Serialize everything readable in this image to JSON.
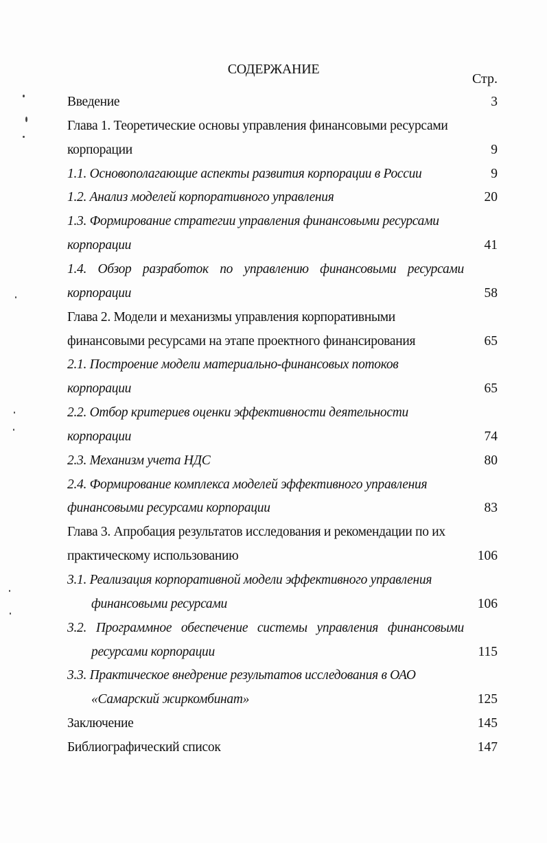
{
  "document": {
    "title": "СОДЕРЖАНИЕ",
    "page_column_header": "Стр.",
    "lines": [
      {
        "text": "Введение",
        "style": "normal",
        "page": "3"
      },
      {
        "text": "Глава 1.  Теоретические основы управления финансовыми ресурсами",
        "style": "normal"
      },
      {
        "text": "корпорации",
        "style": "normal",
        "page": "9"
      },
      {
        "text": "1.1. Основополагающие аспекты развития  корпорации в России",
        "style": "italic",
        "page": "9"
      },
      {
        "text": "1.2. Анализ моделей корпоративного управления",
        "style": "italic",
        "page": "20"
      },
      {
        "text": "1.3. Формирование стратегии управления финансовыми ресурсами",
        "style": "italic"
      },
      {
        "text": "корпорации",
        "style": "italic",
        "page": "41"
      },
      {
        "text": "1.4. Обзор разработок по управлению финансовыми ресурсами",
        "style": "italic",
        "justify": true
      },
      {
        "text": "корпорации",
        "style": "italic",
        "page": "58"
      },
      {
        "text": "Глава 2. Модели и механизмы управления корпоративными",
        "style": "normal"
      },
      {
        "text": "финансовыми ресурсами на этапе проектного финансирования",
        "style": "normal",
        "page": "65"
      },
      {
        "text": "2.1. Построение модели материально-финансовых потоков",
        "style": "italic"
      },
      {
        "text": "корпорации",
        "style": "italic",
        "page": "65"
      },
      {
        "text": "2.2. Отбор критериев оценки эффективности деятельности",
        "style": "italic"
      },
      {
        "text": "корпорации",
        "style": "italic",
        "page": "74"
      },
      {
        "text": "2.3. Механизм учета НДС",
        "style": "italic",
        "page": "80"
      },
      {
        "text": "2.4. Формирование комплекса моделей эффективного управления",
        "style": "italic"
      },
      {
        "text": "финансовыми ресурсами корпорации",
        "style": "italic",
        "page": "83"
      },
      {
        "text": "Глава 3. Апробация результатов исследования и рекомендации по их",
        "style": "normal"
      },
      {
        "text": "практическому использованию",
        "style": "normal",
        "page": "106"
      },
      {
        "text": "3.1.  Реализация корпоративной модели эффективного управления",
        "style": "italic"
      },
      {
        "text": "финансовыми ресурсами",
        "style": "italic",
        "indent": true,
        "page": "106"
      },
      {
        "text": "3.2. Программное обеспечение системы управления финансовыми",
        "style": "italic",
        "justify": true
      },
      {
        "text": "ресурсами корпорации",
        "style": "italic",
        "indent": true,
        "page": "115"
      },
      {
        "text": "3.3.  Практическое внедрение результатов исследования в ОАО",
        "style": "italic"
      },
      {
        "text": "«Самарский жиркомбинат»",
        "style": "italic",
        "indent": true,
        "page": "125"
      },
      {
        "text": "Заключение",
        "style": "normal",
        "page": "145"
      },
      {
        "text": "Библиографический список",
        "style": "normal",
        "page": "147"
      }
    ]
  }
}
